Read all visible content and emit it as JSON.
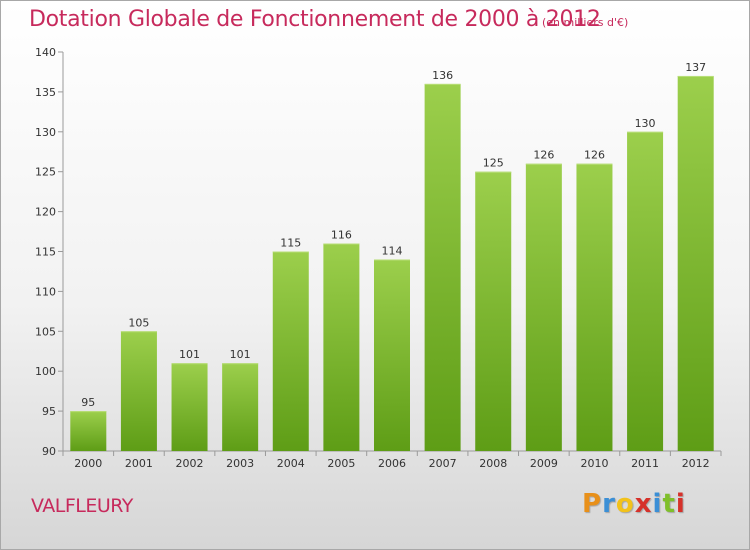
{
  "header": {
    "title": "Dotation Globale de Fonctionnement de 2000 à 2012",
    "unit": "(en milliers d'€)"
  },
  "footer": {
    "commune": "VALFLEURY",
    "brand_letters": [
      "P",
      "r",
      "o",
      "x",
      "i",
      "t",
      "i"
    ],
    "brand_colors": [
      "#e8901a",
      "#3b8fd6",
      "#f2c21b",
      "#d6312a",
      "#3b8fd6",
      "#7fbf2a",
      "#d6312a"
    ]
  },
  "chart_data": {
    "type": "bar",
    "categories": [
      "2000",
      "2001",
      "2002",
      "2003",
      "2004",
      "2005",
      "2006",
      "2007",
      "2008",
      "2009",
      "2010",
      "2011",
      "2012"
    ],
    "values": [
      95,
      105,
      101,
      101,
      115,
      116,
      114,
      136,
      125,
      126,
      126,
      130,
      137
    ],
    "title": "Dotation Globale de Fonctionnement de 2000 à 2012",
    "xlabel": "",
    "ylabel": "",
    "ylim": [
      90,
      140
    ],
    "yticks": [
      90,
      95,
      100,
      105,
      110,
      115,
      120,
      125,
      130,
      135,
      140
    ],
    "grid": false,
    "bar_color_top": "#9ccf4c",
    "bar_color_bottom": "#5e9d16"
  }
}
